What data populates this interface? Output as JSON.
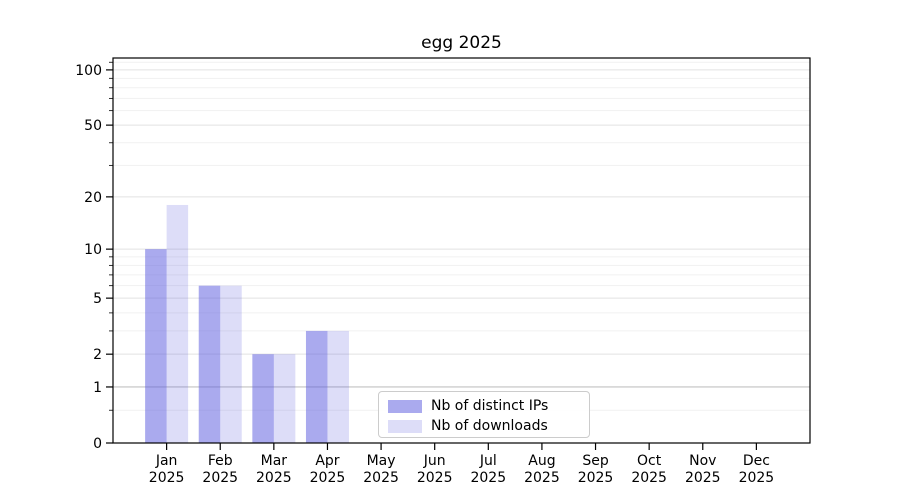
{
  "chart_data": {
    "type": "bar",
    "title": "egg 2025",
    "xlabel": "",
    "ylabel": "",
    "categories": [
      "Jan",
      "Feb",
      "Mar",
      "Apr",
      "May",
      "Jun",
      "Jul",
      "Aug",
      "Sep",
      "Oct",
      "Nov",
      "Dec"
    ],
    "x_tick_year": "2025",
    "series": [
      {
        "name": "Nb of distinct IPs",
        "color": "rgba(85,85,221,0.5)",
        "values": [
          10,
          6,
          2,
          3,
          0,
          0,
          0,
          0,
          0,
          0,
          0,
          0
        ]
      },
      {
        "name": "Nb of downloads",
        "color": "rgba(85,85,221,0.2)",
        "values": [
          18,
          6,
          2,
          3,
          0,
          0,
          0,
          0,
          0,
          0,
          0,
          0
        ]
      }
    ],
    "yscale": "log1p",
    "ylim": [
      0,
      116
    ],
    "yticks_major": [
      0,
      1,
      2,
      5,
      10,
      20,
      50,
      100
    ],
    "yticks_minor": [
      0.5,
      3,
      4,
      6,
      7,
      8,
      9,
      30,
      40,
      60,
      70,
      80,
      90,
      110
    ],
    "grid": "on",
    "baseline_value": 1,
    "legend_position": "lower center",
    "colors": {
      "spine": "#000000",
      "tick_text": "#000000",
      "grid_major": "#e2e2e2",
      "grid_minor": "#f1f1f1",
      "grid_baseline": "#c2c2c2"
    }
  }
}
